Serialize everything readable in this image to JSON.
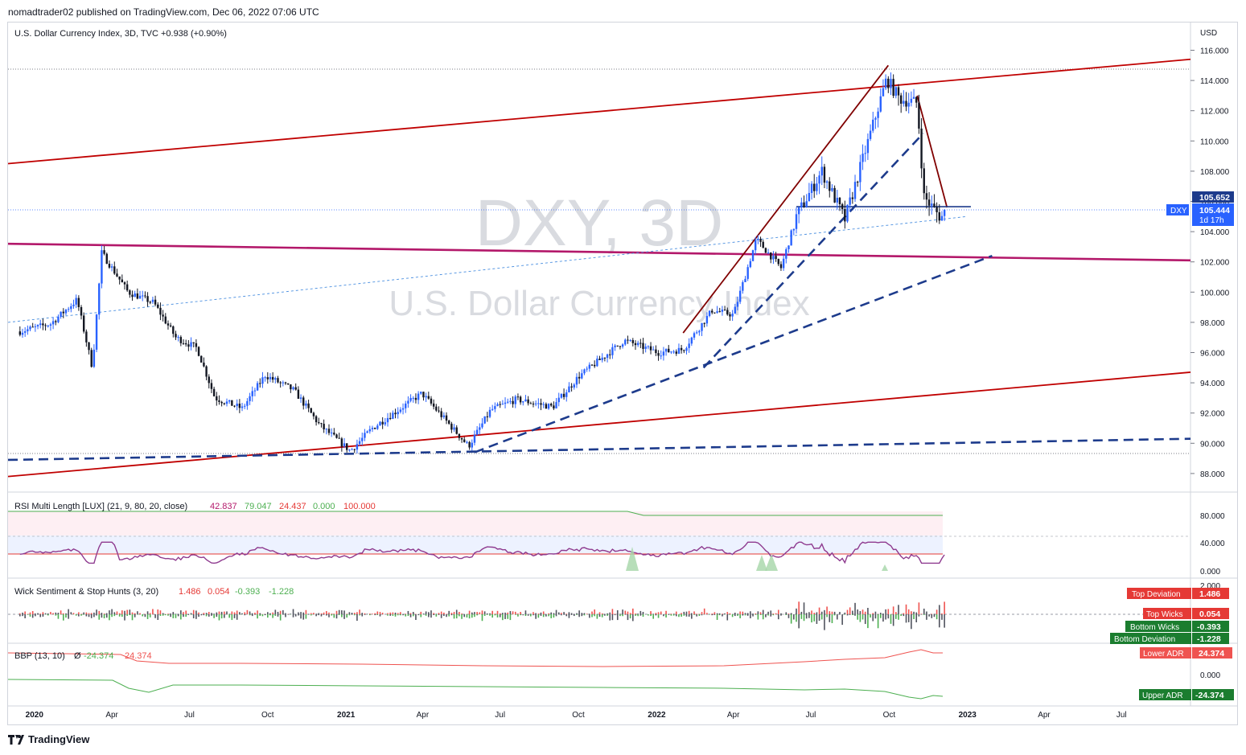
{
  "header": {
    "published": "nomadtrader02 published on TradingView.com, Dec 06, 2022 07:06 UTC"
  },
  "footer": {
    "brand": "TradingView"
  },
  "colors": {
    "up": "#2962ff",
    "down": "#131722",
    "red": "#c00000",
    "magenta": "#b3186a",
    "navy": "#1d3b8c",
    "green": "#4caf50"
  },
  "main_pane": {
    "legend": "U.S. Dollar Currency Index, 3D, TVC  +0.938 (+0.90%)",
    "watermark_symbol": "DXY, 3D",
    "watermark_name": "U.S. Dollar Currency Index",
    "currency": "USD",
    "price_ticks": [
      "116.000",
      "114.000",
      "112.000",
      "110.000",
      "108.000",
      "106.000",
      "104.000",
      "102.000",
      "100.000",
      "98.000",
      "96.000",
      "94.000",
      "92.000",
      "90.000",
      "88.000"
    ],
    "last_price": "105.444",
    "last_price_symbol": "DXY",
    "countdown": "1d 17h",
    "level_price": "105.652"
  },
  "time_axis": [
    "2020",
    "Apr",
    "Jul",
    "Oct",
    "2021",
    "Apr",
    "Jul",
    "Oct",
    "2022",
    "Apr",
    "Jul",
    "Oct",
    "2023",
    "Apr",
    "Jul"
  ],
  "rsi_pane": {
    "legend_title": "RSI Multi Length [LUX] (21, 9, 80, 20, close)",
    "values": [
      "42.837",
      "79.047",
      "24.437",
      "0.000",
      "100.000"
    ],
    "ticks": [
      "80.000",
      "40.000",
      "0.000"
    ]
  },
  "wick_pane": {
    "legend_title": "Wick Sentiment & Stop Hunts (3, 20)",
    "values": [
      "1.486",
      "0.054",
      "-0.393",
      "-1.228"
    ],
    "tick": "2.000",
    "badges": [
      {
        "label": "Top Deviation",
        "value": "1.486"
      },
      {
        "label": "Top Wicks",
        "value": "0.054"
      },
      {
        "label": "Bottom Wicks",
        "value": "-0.393"
      },
      {
        "label": "Bottom Deviation",
        "value": "-1.228"
      }
    ]
  },
  "bbp_pane": {
    "legend_title": "BBP (13, 10)",
    "symbol": "Ø",
    "values": [
      "-24.374",
      "24.374"
    ],
    "tick": "0.000",
    "badges": [
      {
        "label": "Lower ADR",
        "value": "24.374"
      },
      {
        "label": "Upper ADR",
        "value": "-24.374"
      }
    ]
  },
  "chart_data": {
    "type": "candlestick",
    "title": "U.S. Dollar Currency Index, 3D, TVC",
    "ylabel": "USD",
    "ylim": [
      87,
      117
    ],
    "x_axis": "time (Dec 2019 – Sep 2023)",
    "key_prices": [
      {
        "date": "2020-03-20",
        "high": 103.0
      },
      {
        "date": "2021-01-06",
        "low": 89.2
      },
      {
        "date": "2022-09-28",
        "high": 114.8
      },
      {
        "date": "2022-12-06",
        "close": 105.444
      }
    ],
    "path_close": [
      [
        "2019-12-15",
        97.4
      ],
      [
        "2020-01-20",
        97.9
      ],
      [
        "2020-02-20",
        99.5
      ],
      [
        "2020-03-09",
        95.0
      ],
      [
        "2020-03-20",
        102.6
      ],
      [
        "2020-04-20",
        100.0
      ],
      [
        "2020-05-20",
        99.3
      ],
      [
        "2020-06-15",
        97.0
      ],
      [
        "2020-07-10",
        96.3
      ],
      [
        "2020-07-31",
        93.0
      ],
      [
        "2020-09-01",
        92.3
      ],
      [
        "2020-09-28",
        94.5
      ],
      [
        "2020-11-01",
        93.5
      ],
      [
        "2020-12-01",
        91.2
      ],
      [
        "2021-01-06",
        89.5
      ],
      [
        "2021-02-01",
        91.0
      ],
      [
        "2021-03-31",
        93.3
      ],
      [
        "2021-05-25",
        89.8
      ],
      [
        "2021-06-20",
        92.2
      ],
      [
        "2021-07-20",
        92.9
      ],
      [
        "2021-09-01",
        92.4
      ],
      [
        "2021-10-01",
        94.4
      ],
      [
        "2021-11-24",
        96.8
      ],
      [
        "2022-01-03",
        96.0
      ],
      [
        "2022-02-01",
        96.2
      ],
      [
        "2022-03-07",
        98.8
      ],
      [
        "2022-04-01",
        98.5
      ],
      [
        "2022-04-28",
        103.5
      ],
      [
        "2022-05-27",
        101.6
      ],
      [
        "2022-06-14",
        105.0
      ],
      [
        "2022-07-14",
        108.0
      ],
      [
        "2022-08-10",
        104.8
      ],
      [
        "2022-09-28",
        114.1
      ],
      [
        "2022-10-13",
        112.8
      ],
      [
        "2022-11-03",
        112.5
      ],
      [
        "2022-11-11",
        106.3
      ],
      [
        "2022-12-01",
        104.9
      ],
      [
        "2022-12-06",
        105.444
      ]
    ],
    "drawings": [
      {
        "name": "red-upper-channel",
        "color": "#c00000",
        "from": [
          "2019-12-01",
          108.5
        ],
        "to": [
          "2023-09-20",
          115.4
        ]
      },
      {
        "name": "red-lower-channel",
        "color": "#c00000",
        "from": [
          "2019-12-01",
          87.8
        ],
        "to": [
          "2023-09-20",
          94.7
        ]
      },
      {
        "name": "magenta-line",
        "color": "#b3186a",
        "from": [
          "2019-12-01",
          103.2
        ],
        "to": [
          "2023-09-20",
          102.1
        ]
      },
      {
        "name": "navy-dashed-bottom",
        "style": "dashed",
        "color": "#1d3b8c",
        "from": [
          "2019-12-01",
          88.9
        ],
        "to": [
          "2023-09-20",
          90.3
        ]
      },
      {
        "name": "navy-dashed-mid",
        "style": "dashed",
        "color": "#1d3b8c",
        "from": [
          "2021-06-01",
          89.4
        ],
        "to": [
          "2023-01-30",
          102.4
        ]
      },
      {
        "name": "navy-dashed-steep",
        "style": "dashed",
        "color": "#1d3b8c",
        "from": [
          "2022-02-25",
          95.0
        ],
        "to": [
          "2022-11-10",
          110.5
        ]
      },
      {
        "name": "blue-dotted-trend",
        "style": "dotted",
        "color": "#2962ff",
        "from": [
          "2019-12-01",
          98.0
        ],
        "to": [
          "2022-12-31",
          105.0
        ]
      },
      {
        "name": "maroon-rise",
        "color": "#800000",
        "from": [
          "2022-02-01",
          97.3
        ],
        "to": [
          "2022-09-30",
          115.0
        ]
      },
      {
        "name": "maroon-fall",
        "color": "#800000",
        "from": [
          "2022-11-03",
          113.0
        ],
        "to": [
          "2022-12-08",
          105.6
        ]
      },
      {
        "name": "navy-level",
        "color": "#1d3b8c",
        "from": [
          "2022-06-14",
          105.652
        ],
        "to": [
          "2023-01-05",
          105.652
        ]
      }
    ]
  }
}
